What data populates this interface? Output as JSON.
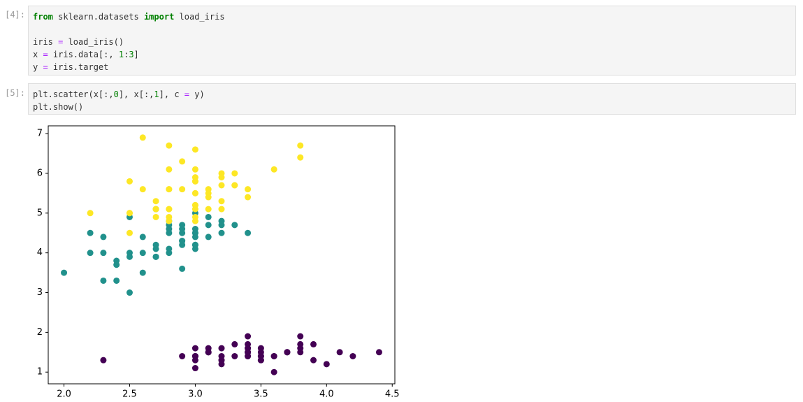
{
  "cells": [
    {
      "prompt": "[4]:",
      "code": "from sklearn.datasets import load_iris\n\niris = load_iris()\nx = iris.data[:, 1:3]\ny = iris.target"
    },
    {
      "prompt": "[5]:",
      "code": "plt.scatter(x[:,0], x[:,1], c = y)\nplt.show()"
    }
  ],
  "chart_data": {
    "type": "scatter",
    "xlim": [
      1.88,
      4.52
    ],
    "ylim": [
      0.705,
      7.195
    ],
    "xticks": [
      {
        "value": 2,
        "label": "2.0"
      },
      {
        "value": 2.5,
        "label": "2.5"
      },
      {
        "value": 3,
        "label": "3.0"
      },
      {
        "value": 3.5,
        "label": "3.5"
      },
      {
        "value": 4,
        "label": "4.0"
      },
      {
        "value": 4.5,
        "label": "4.5"
      }
    ],
    "yticks": [
      1,
      2,
      3,
      4,
      5,
      6,
      7
    ],
    "series": [
      {
        "color": "#440154",
        "x": [
          3.5,
          3.0,
          3.2,
          3.1,
          3.6,
          3.9,
          3.4,
          3.4,
          2.9,
          3.1,
          3.7,
          3.4,
          3.0,
          3.0,
          4.0,
          4.4,
          3.9,
          3.5,
          3.8,
          3.8,
          3.4,
          3.7,
          3.6,
          3.3,
          3.4,
          3.0,
          3.4,
          3.5,
          3.4,
          3.2,
          3.1,
          3.4,
          4.1,
          4.2,
          3.1,
          3.2,
          3.5,
          3.6,
          3.0,
          3.4,
          3.5,
          2.3,
          3.2,
          3.5,
          3.8,
          3.0,
          3.8,
          3.2,
          3.7,
          3.3
        ],
        "values": [
          1.4,
          1.4,
          1.3,
          1.5,
          1.4,
          1.7,
          1.4,
          1.5,
          1.4,
          1.5,
          1.5,
          1.6,
          1.4,
          1.1,
          1.2,
          1.5,
          1.3,
          1.4,
          1.7,
          1.5,
          1.7,
          1.5,
          1.0,
          1.7,
          1.9,
          1.6,
          1.6,
          1.5,
          1.4,
          1.6,
          1.6,
          1.5,
          1.5,
          1.4,
          1.5,
          1.2,
          1.3,
          1.4,
          1.3,
          1.5,
          1.3,
          1.3,
          1.3,
          1.6,
          1.9,
          1.4,
          1.6,
          1.4,
          1.5,
          1.4
        ]
      },
      {
        "color": "#21918c",
        "x": [
          3.2,
          3.2,
          3.1,
          2.3,
          2.8,
          2.8,
          3.3,
          2.4,
          2.9,
          2.7,
          2.0,
          3.0,
          2.2,
          2.9,
          2.9,
          3.1,
          3.0,
          2.7,
          2.2,
          2.5,
          3.2,
          2.8,
          2.5,
          2.8,
          2.9,
          3.0,
          2.8,
          3.0,
          2.9,
          2.6,
          2.4,
          2.4,
          2.7,
          2.7,
          3.0,
          3.4,
          3.1,
          2.3,
          3.0,
          2.5,
          2.6,
          3.0,
          2.6,
          2.3,
          2.7,
          3.0,
          2.9,
          2.9,
          2.5,
          2.8
        ],
        "values": [
          4.7,
          4.5,
          4.9,
          4.0,
          4.6,
          4.5,
          4.7,
          3.3,
          4.6,
          3.9,
          3.5,
          4.2,
          4.0,
          4.7,
          3.6,
          4.4,
          4.5,
          4.1,
          4.5,
          3.9,
          4.8,
          4.0,
          4.9,
          4.7,
          4.3,
          4.4,
          4.8,
          5.0,
          4.5,
          3.5,
          3.8,
          3.7,
          3.9,
          5.1,
          4.5,
          4.5,
          4.7,
          4.4,
          4.1,
          4.0,
          4.4,
          4.6,
          4.0,
          3.3,
          4.2,
          4.2,
          4.2,
          4.3,
          3.0,
          4.1
        ]
      },
      {
        "color": "#fde725",
        "x": [
          3.3,
          2.7,
          3.0,
          2.9,
          3.0,
          3.0,
          2.5,
          2.9,
          2.5,
          3.6,
          3.2,
          2.7,
          3.0,
          2.5,
          2.8,
          3.2,
          3.0,
          3.8,
          2.6,
          2.2,
          3.2,
          2.8,
          2.8,
          2.7,
          3.3,
          3.2,
          2.8,
          3.0,
          2.8,
          3.0,
          2.8,
          3.8,
          2.8,
          2.8,
          2.6,
          3.0,
          3.4,
          3.1,
          3.0,
          3.1,
          3.1,
          3.1,
          2.7,
          3.2,
          3.3,
          3.0,
          2.5,
          3.0,
          3.4,
          3.0
        ],
        "values": [
          6.0,
          5.1,
          5.9,
          5.6,
          5.8,
          6.6,
          4.5,
          6.3,
          5.8,
          6.1,
          5.1,
          5.3,
          5.5,
          5.0,
          5.1,
          5.3,
          5.5,
          6.7,
          6.9,
          5.0,
          5.7,
          4.9,
          6.7,
          4.9,
          5.7,
          6.0,
          4.8,
          4.9,
          5.6,
          5.8,
          6.1,
          6.4,
          5.6,
          5.1,
          5.6,
          6.1,
          5.6,
          5.5,
          4.8,
          5.4,
          5.6,
          5.1,
          5.1,
          5.9,
          5.7,
          5.2,
          5.0,
          5.2,
          5.4,
          5.1
        ]
      }
    ]
  }
}
